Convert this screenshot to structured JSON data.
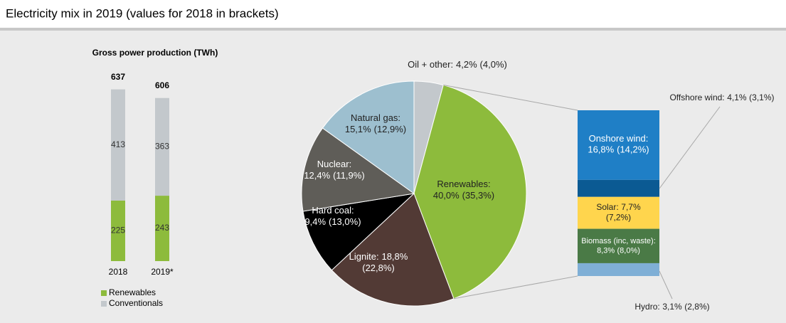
{
  "title": "Electricity mix in 2019 (values for 2018 in brackets)",
  "chart_data": [
    {
      "type": "stacked_bar",
      "title": "Gross power production (TWh)",
      "categories": [
        "2018",
        "2019*"
      ],
      "totals": [
        637,
        606
      ],
      "series": [
        {
          "name": "Renewables",
          "color": "#8dbb3c",
          "values": [
            225,
            243
          ]
        },
        {
          "name": "Conventionals",
          "color": "#c3c8cc",
          "values": [
            413,
            363
          ]
        }
      ]
    },
    {
      "type": "pie",
      "categories": [
        "Oil + other:",
        "Renewables:",
        "Lignite:",
        "Hard coal:",
        "Nuclear:",
        "Natural gas:"
      ],
      "values": [
        4.2,
        40.0,
        18.8,
        9.4,
        12.4,
        15.1
      ],
      "value_labels": [
        "4,2%",
        "40,0%",
        "18,8%",
        "9,4%",
        "12,4%",
        "15,1%"
      ],
      "prev_values": [
        4.0,
        35.3,
        22.8,
        13.0,
        11.9,
        12.9
      ],
      "prev_value_labels": [
        "(4,0%)",
        "(35,3%)",
        "(22,8%)",
        "(13,0%)",
        "(11,9%)",
        "(12,9%)"
      ],
      "colors": [
        "#c3c8cc",
        "#8dbb3c",
        "#523a35",
        "#000000",
        "#5f5d58",
        "#9dbfcf"
      ]
    },
    {
      "type": "breakdown_bar",
      "categories": [
        "Onshore wind:",
        "Offshore wind:",
        "Solar:",
        "Biomass (inc, waste):",
        "Hydro:"
      ],
      "values": [
        16.8,
        4.1,
        7.7,
        8.3,
        3.1
      ],
      "value_labels": [
        "16,8%",
        "4,1%",
        "7,7%",
        "8,3%",
        "3,1%"
      ],
      "prev_values": [
        14.2,
        3.1,
        7.2,
        8.0,
        2.8
      ],
      "prev_value_labels": [
        "(14,2%)",
        "(3,1%)",
        "(7,2%)",
        "(8,0%)",
        "(2,8%)"
      ],
      "colors": [
        "#1f7fc6",
        "#0b5a93",
        "#ffd54d",
        "#4a7a46",
        "#7fafd6"
      ]
    }
  ]
}
